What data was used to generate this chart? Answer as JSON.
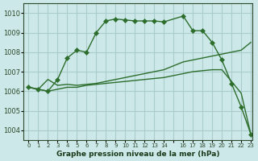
{
  "bg_color": "#cce8e8",
  "grid_color": "#aacccc",
  "line_color": "#2d6e2d",
  "marker_color": "#2d6e2d",
  "xlabel": "Graphe pression niveau de la mer (hPa)",
  "xlim": [
    -0.5,
    23.2
  ],
  "ylim": [
    1003.5,
    1010.5
  ],
  "yticks": [
    1004,
    1005,
    1006,
    1007,
    1008,
    1009,
    1010
  ],
  "xtick_labels": [
    "0",
    "1",
    "2",
    "3",
    "4",
    "5",
    "6",
    "7",
    "8",
    "9",
    "10",
    "11",
    "12",
    "13",
    "14",
    "",
    "16",
    "17",
    "18",
    "19",
    "20",
    "21",
    "22",
    "23"
  ],
  "line1_x": [
    0,
    1,
    2,
    3,
    4,
    5,
    6,
    7,
    8,
    9,
    10,
    11,
    12,
    13,
    14,
    16,
    17,
    18,
    19,
    20,
    21,
    22,
    23
  ],
  "line1_y": [
    1006.2,
    1006.1,
    1006.0,
    1006.6,
    1007.7,
    1008.1,
    1008.0,
    1009.0,
    1009.6,
    1009.7,
    1009.65,
    1009.6,
    1009.6,
    1009.6,
    1009.55,
    1009.85,
    1009.1,
    1009.1,
    1008.5,
    1007.6,
    1006.4,
    1005.2,
    1003.8
  ],
  "line2_x": [
    0,
    1,
    2,
    3,
    4,
    5,
    6,
    7,
    8,
    9,
    10,
    11,
    12,
    13,
    14,
    16,
    17,
    18,
    19,
    20,
    22,
    23
  ],
  "line2_y": [
    1006.2,
    1006.1,
    1006.6,
    1006.3,
    1006.35,
    1006.3,
    1006.35,
    1006.4,
    1006.5,
    1006.6,
    1006.7,
    1006.8,
    1006.9,
    1007.0,
    1007.1,
    1007.5,
    1007.6,
    1007.7,
    1007.8,
    1007.9,
    1008.1,
    1008.5
  ],
  "line3_x": [
    0,
    1,
    2,
    3,
    4,
    5,
    6,
    7,
    8,
    9,
    10,
    11,
    12,
    13,
    14,
    16,
    17,
    18,
    19,
    20,
    22,
    23
  ],
  "line3_y": [
    1006.2,
    1006.1,
    1006.0,
    1006.1,
    1006.2,
    1006.2,
    1006.3,
    1006.35,
    1006.4,
    1006.45,
    1006.5,
    1006.55,
    1006.6,
    1006.65,
    1006.7,
    1006.9,
    1007.0,
    1007.05,
    1007.1,
    1007.1,
    1005.9,
    1003.8
  ]
}
